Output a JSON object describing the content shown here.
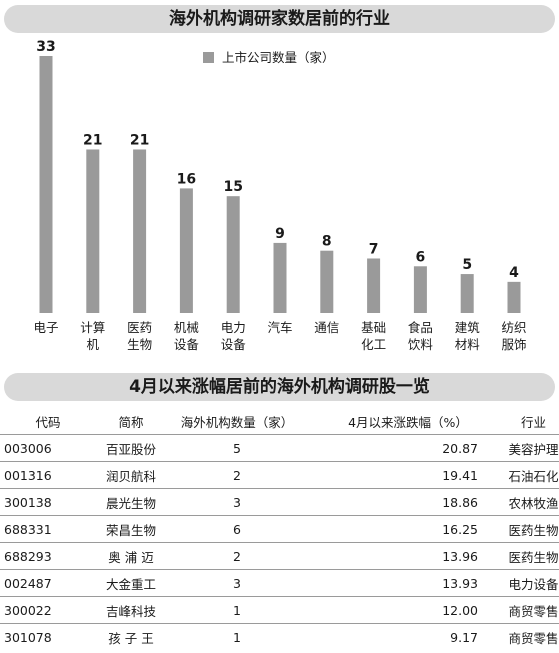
{
  "chart_title": "海外机构调研家数居前的行业",
  "chart_data": {
    "type": "bar",
    "categories": [
      [
        "电子"
      ],
      [
        "计算",
        "机"
      ],
      [
        "医药",
        "生物"
      ],
      [
        "机械",
        "设备"
      ],
      [
        "电力",
        "设备"
      ],
      [
        "汽车"
      ],
      [
        "通信"
      ],
      [
        "基础",
        "化工"
      ],
      [
        "食品",
        "饮料"
      ],
      [
        "建筑",
        "材料"
      ],
      [
        "纺织",
        "服饰"
      ]
    ],
    "series": [
      {
        "name": "上市公司数量（家）",
        "values": [
          33,
          21,
          21,
          16,
          15,
          9,
          8,
          7,
          6,
          5,
          4
        ]
      }
    ],
    "legend_position": "top-center",
    "color": "#9a9a9a"
  },
  "table": {
    "title": "4月以来涨幅居前的海外机构调研股一览",
    "headers": [
      "代码",
      "简称",
      "海外机构数量（家）",
      "4月以来涨跌幅（%）",
      "行业"
    ],
    "rows": [
      [
        "003006",
        "百亚股份",
        "5",
        "20.87",
        "美容护理"
      ],
      [
        "001316",
        "润贝航科",
        "2",
        "19.41",
        "石油石化"
      ],
      [
        "300138",
        "晨光生物",
        "3",
        "18.86",
        "农林牧渔"
      ],
      [
        "688331",
        "荣昌生物",
        "6",
        "16.25",
        "医药生物"
      ],
      [
        "688293",
        "奥 浦 迈",
        "2",
        "13.96",
        "医药生物"
      ],
      [
        "002487",
        "大金重工",
        "3",
        "13.93",
        "电力设备"
      ],
      [
        "300022",
        "吉峰科技",
        "1",
        "12.00",
        "商贸零售"
      ],
      [
        "301078",
        "孩 子 王",
        "1",
        "9.17",
        "商贸零售"
      ]
    ]
  }
}
